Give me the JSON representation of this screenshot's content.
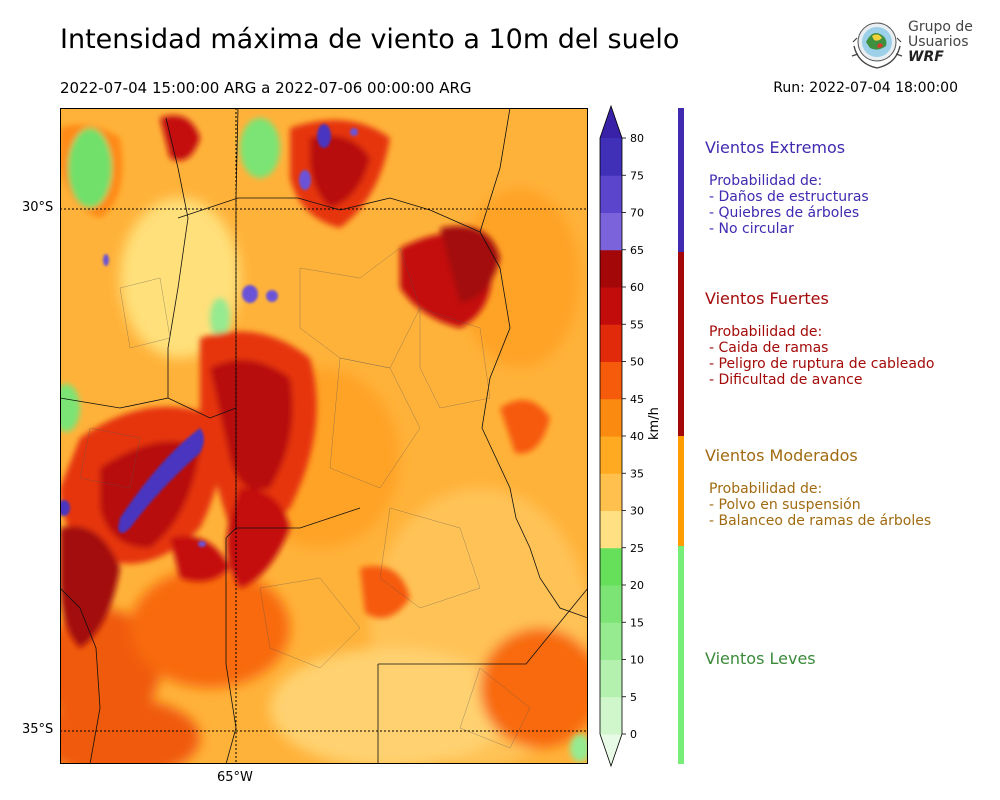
{
  "header": {
    "title": "Intensidad máxima de viento a 10m del suelo",
    "period": "2022-07-04 15:00:00 ARG  a  2022-07-06 00:00:00 ARG",
    "run": "Run: 2022-07-04 18:00:00"
  },
  "logo": {
    "line1": "Grupo de",
    "line2": "Usuarios",
    "line3": "WRF"
  },
  "map": {
    "lat_labels": [
      "30°S",
      "35°S"
    ],
    "lon_labels": [
      "65°W"
    ],
    "gridlines": "dotted"
  },
  "colorbar": {
    "unit": "km/h",
    "ticks": [
      "0",
      "5",
      "10",
      "15",
      "20",
      "25",
      "30",
      "35",
      "40",
      "45",
      "50",
      "55",
      "60",
      "65",
      "70",
      "75",
      "80"
    ],
    "colors": [
      "#e8fbe6",
      "#d0f6cc",
      "#b4f0ae",
      "#96ea90",
      "#7ce474",
      "#66df5a",
      "#ffe082",
      "#ffc04d",
      "#ffaa20",
      "#fa8a10",
      "#f65a0b",
      "#e02a0a",
      "#c20c0c",
      "#a30707",
      "#7b63dc",
      "#5a45cc",
      "#4030b8",
      "#3a22a8"
    ]
  },
  "categories": [
    {
      "title": "Vientos Extremos",
      "color": "#3f2ab0",
      "desc": [
        "Probabilidad de:",
        "- Daños de estructuras",
        "- Quiebres de árboles",
        "- No circular"
      ]
    },
    {
      "title": "Vientos Fuertes",
      "color": "#a30a0a",
      "desc": [
        "Probabilidad de:",
        "- Caida de ramas",
        "- Peligro de ruptura de cableado",
        "- Dificultad de avance"
      ]
    },
    {
      "title": "Vientos Moderados",
      "color": "#a06a10",
      "desc": [
        "Probabilidad de:",
        "- Polvo en suspensión",
        "- Balanceo de ramas de árboles"
      ]
    },
    {
      "title": "Vientos Leves",
      "color": "#3a8a3a",
      "desc": []
    }
  ],
  "side_bar_colors": [
    "#3f2ab0",
    "#a30707",
    "#ff9d00",
    "#77ee77"
  ]
}
